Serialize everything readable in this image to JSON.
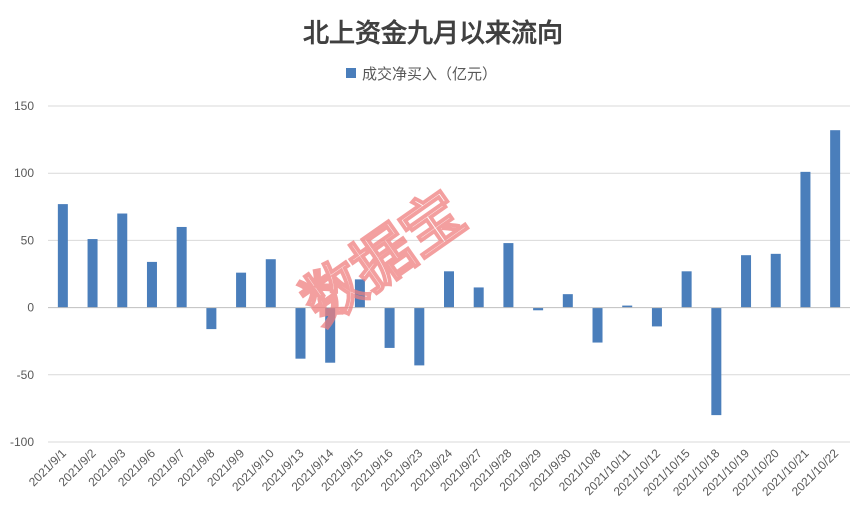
{
  "chart_data": {
    "type": "bar",
    "title": "北上资金九月以来流向",
    "legend": {
      "position": "top",
      "entries": [
        "成交净买入（亿元）"
      ]
    },
    "series": [
      {
        "name": "成交净买入（亿元）",
        "color": "#4a7ebb",
        "values": [
          77,
          51,
          70,
          34,
          60,
          -16,
          26,
          36,
          -38,
          -41,
          21,
          -30,
          -43,
          27,
          15,
          48,
          -2,
          10,
          -26,
          1.5,
          -14,
          27,
          -80,
          39,
          40,
          101,
          132
        ]
      }
    ],
    "categories": [
      "2021/9/1",
      "2021/9/2",
      "2021/9/3",
      "2021/9/6",
      "2021/9/7",
      "2021/9/8",
      "2021/9/9",
      "2021/9/10",
      "2021/9/13",
      "2021/9/14",
      "2021/9/15",
      "2021/9/16",
      "2021/9/23",
      "2021/9/24",
      "2021/9/27",
      "2021/9/28",
      "2021/9/29",
      "2021/9/30",
      "2021/10/8",
      "2021/10/11",
      "2021/10/12",
      "2021/10/15",
      "2021/10/18",
      "2021/10/19",
      "2021/10/20",
      "2021/10/21",
      "2021/10/22"
    ],
    "ylim": [
      -100,
      150
    ],
    "yticks": [
      -100,
      -50,
      0,
      50,
      100,
      150
    ],
    "grid": true,
    "xlabel": "",
    "ylabel": ""
  },
  "watermark": {
    "text": "数据宝",
    "color": "#f08080"
  }
}
